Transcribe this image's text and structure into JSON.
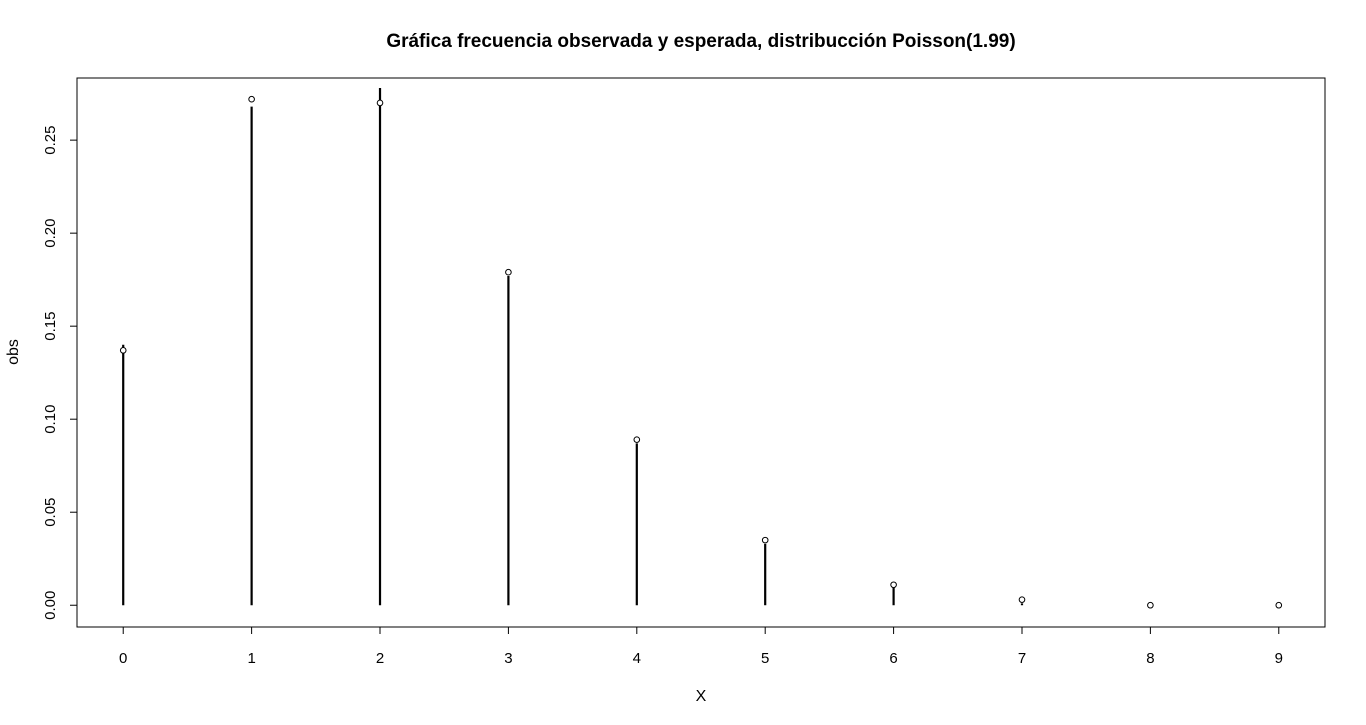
{
  "chart_data": {
    "type": "scatter",
    "title": "Gráfica frecuencia observada y esperada, distribucción Poisson(1.99)",
    "xlabel": "X",
    "ylabel": "obs",
    "x_ticks": [
      "0",
      "1",
      "2",
      "3",
      "4",
      "5",
      "6",
      "7",
      "8",
      "9"
    ],
    "y_ticks": [
      "0.00",
      "0.05",
      "0.10",
      "0.15",
      "0.20",
      "0.25"
    ],
    "xlim": [
      -0.36,
      9.36
    ],
    "ylim": [
      -0.0117,
      0.2834
    ],
    "grid": false,
    "series": [
      {
        "style": "vertical lines",
        "x": [
          0,
          1,
          2,
          3,
          4,
          5,
          6,
          7,
          8,
          9
        ],
        "values": [
          0.14,
          0.268,
          0.278,
          0.177,
          0.087,
          0.033,
          0.01,
          0.001,
          0.0,
          0.0
        ]
      },
      {
        "style": "open circles",
        "x": [
          0,
          1,
          2,
          3,
          4,
          5,
          6,
          7,
          8,
          9
        ],
        "values": [
          0.137,
          0.272,
          0.27,
          0.179,
          0.089,
          0.035,
          0.011,
          0.003,
          0.0,
          0.0
        ]
      }
    ]
  }
}
